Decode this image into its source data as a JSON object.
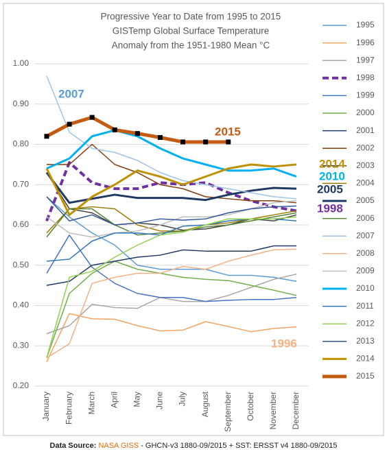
{
  "chart_data": {
    "type": "line",
    "title": [
      "Progressive Year to Date from 1995 to 2015",
      "GISTemp Global Surface Temperature",
      "Anomaly from the 1951-1980 Mean °C"
    ],
    "categories": [
      "January",
      "February",
      "March",
      "April",
      "May",
      "June",
      "July",
      "August",
      "September",
      "October",
      "November",
      "December"
    ],
    "ylim": [
      0.2,
      1.0
    ],
    "yticks": [
      {
        "value": 0.2,
        "label": "0.20"
      },
      {
        "value": 0.3,
        "label": "0.30"
      },
      {
        "value": 0.4,
        "label": "0.40"
      },
      {
        "value": 0.5,
        "label": "0.50"
      },
      {
        "value": 0.6,
        "label": "0.60"
      },
      {
        "value": 0.7,
        "label": "0.70"
      },
      {
        "value": 0.8,
        "label": "0.80"
      },
      {
        "value": 0.9,
        "label": "0.90"
      },
      {
        "value": 1.0,
        "label": "1.00"
      }
    ],
    "grid": true,
    "series": [
      {
        "name": "1995",
        "color": "#5b9bd5",
        "values": [
          0.67,
          0.62,
          0.58,
          0.55,
          0.5,
          0.49,
          0.49,
          0.49,
          0.475,
          0.475,
          0.47,
          0.46
        ]
      },
      {
        "name": "1996",
        "color": "#f4a460",
        "values": [
          0.26,
          0.38,
          0.367,
          0.366,
          0.35,
          0.337,
          0.339,
          0.36,
          0.348,
          0.335,
          0.343,
          0.347
        ]
      },
      {
        "name": "1997",
        "color": "#a6a6a6",
        "values": [
          0.33,
          0.35,
          0.403,
          0.395,
          0.393,
          0.42,
          0.41,
          0.41,
          0.425,
          0.445,
          0.465,
          0.478
        ]
      },
      {
        "name": "1998",
        "color": "#7030a0",
        "width": 4,
        "dash": true,
        "values": [
          0.61,
          0.755,
          0.705,
          0.69,
          0.69,
          0.705,
          0.7,
          0.705,
          0.68,
          0.66,
          0.645,
          0.635
        ]
      },
      {
        "name": "1999",
        "color": "#4472c4",
        "values": [
          0.48,
          0.575,
          0.495,
          0.455,
          0.43,
          0.42,
          0.42,
          0.41,
          0.413,
          0.415,
          0.415,
          0.42
        ]
      },
      {
        "name": "2000",
        "color": "#70ad47",
        "values": [
          0.27,
          0.43,
          0.48,
          0.51,
          0.49,
          0.48,
          0.47,
          0.465,
          0.462,
          0.45,
          0.438,
          0.425
        ]
      },
      {
        "name": "2001",
        "color": "#1f3864",
        "values": [
          0.45,
          0.46,
          0.5,
          0.51,
          0.52,
          0.525,
          0.538,
          0.535,
          0.535,
          0.535,
          0.548,
          0.548
        ]
      },
      {
        "name": "2002",
        "color": "#843c0c",
        "values": [
          0.75,
          0.75,
          0.8,
          0.75,
          0.73,
          0.7,
          0.69,
          0.67,
          0.665,
          0.66,
          0.66,
          0.655
        ]
      },
      {
        "name": "2003",
        "color": "#404040",
        "values": [
          0.73,
          0.64,
          0.63,
          0.6,
          0.605,
          0.6,
          0.587,
          0.59,
          0.6,
          0.615,
          0.61,
          0.625
        ]
      },
      {
        "name": "2004",
        "color": "#9c7a00",
        "values": [
          0.58,
          0.64,
          0.645,
          0.64,
          0.6,
          0.585,
          0.585,
          0.6,
          0.605,
          0.615,
          0.625,
          0.635
        ]
      },
      {
        "name": "2005",
        "color": "#203864",
        "width": 3,
        "values": [
          0.73,
          0.655,
          0.665,
          0.675,
          0.667,
          0.667,
          0.667,
          0.662,
          0.675,
          0.685,
          0.692,
          0.69
        ]
      },
      {
        "name": "2006",
        "color": "#548235",
        "values": [
          0.57,
          0.64,
          0.64,
          0.6,
          0.575,
          0.58,
          0.585,
          0.595,
          0.6,
          0.61,
          0.62,
          0.63
        ]
      },
      {
        "name": "2007",
        "color": "#9dc3e6",
        "values": [
          0.97,
          0.83,
          0.79,
          0.78,
          0.76,
          0.73,
          0.71,
          0.7,
          0.69,
          0.68,
          0.67,
          0.665
        ]
      },
      {
        "name": "2008",
        "color": "#f4b183",
        "values": [
          0.27,
          0.305,
          0.455,
          0.47,
          0.48,
          0.48,
          0.497,
          0.49,
          0.51,
          0.525,
          0.538,
          0.54
        ]
      },
      {
        "name": "2009",
        "color": "#bfbfbf",
        "values": [
          0.62,
          0.58,
          0.57,
          0.58,
          0.585,
          0.6,
          0.62,
          0.62,
          0.625,
          0.64,
          0.655,
          0.66
        ]
      },
      {
        "name": "2010",
        "color": "#00b0f0",
        "width": 3,
        "values": [
          0.74,
          0.765,
          0.82,
          0.835,
          0.82,
          0.79,
          0.765,
          0.75,
          0.735,
          0.735,
          0.74,
          0.72
        ]
      },
      {
        "name": "2011",
        "color": "#2e75b6",
        "values": [
          0.51,
          0.515,
          0.56,
          0.58,
          0.58,
          0.575,
          0.597,
          0.6,
          0.61,
          0.615,
          0.615,
          0.61
        ]
      },
      {
        "name": "2012",
        "color": "#92d050",
        "values": [
          0.27,
          0.47,
          0.485,
          0.52,
          0.55,
          0.575,
          0.582,
          0.6,
          0.615,
          0.615,
          0.615,
          0.62
        ]
      },
      {
        "name": "2013",
        "color": "#2f5597",
        "values": [
          0.67,
          0.61,
          0.625,
          0.6,
          0.605,
          0.615,
          0.612,
          0.615,
          0.63,
          0.64,
          0.645,
          0.647
        ]
      },
      {
        "name": "2014",
        "color": "#bf9000",
        "width": 3,
        "values": [
          0.74,
          0.625,
          0.67,
          0.7,
          0.735,
          0.72,
          0.7,
          0.72,
          0.74,
          0.75,
          0.745,
          0.75
        ]
      },
      {
        "name": "2015",
        "color": "#c55a11",
        "width": 5,
        "marker": "square",
        "values": [
          0.82,
          0.85,
          0.867,
          0.836,
          0.827,
          0.817,
          0.806,
          0.806,
          0.806,
          null,
          null,
          null
        ]
      }
    ],
    "annotations": [
      {
        "text": "2007",
        "color": "#5b9bd5"
      },
      {
        "text": "2015",
        "color": "#c55a11"
      },
      {
        "text": "2014",
        "color": "#bf9000"
      },
      {
        "text": "2010",
        "color": "#00b0f0"
      },
      {
        "text": "2005",
        "color": "#203864"
      },
      {
        "text": "1998",
        "color": "#7030a0"
      },
      {
        "text": "1996",
        "color": "#f4b183"
      }
    ]
  },
  "footer": {
    "label": "Data Source:",
    "source": "NASA GISS",
    "rest": "- GHCN-v3 1880-09/2015 + SST: ERSST v4 1880-09/2015"
  }
}
